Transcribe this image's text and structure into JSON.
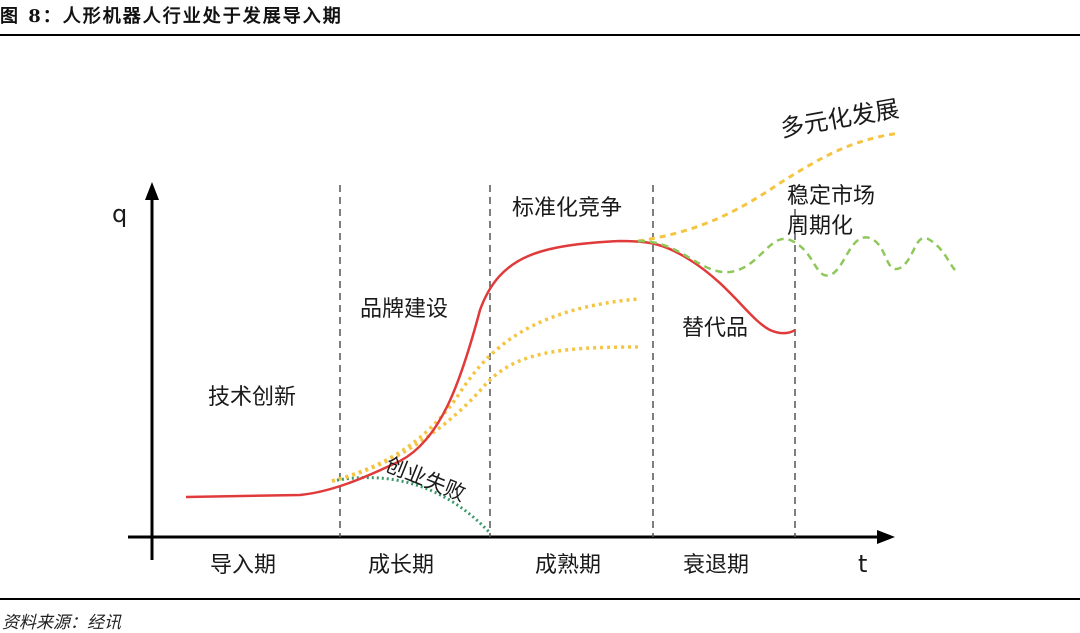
{
  "header": {
    "title": "图 8：人形机器人行业处于发展导入期"
  },
  "footer": {
    "source": "资料来源：经讯"
  },
  "diagram": {
    "axes": {
      "y": "q",
      "x": "t"
    },
    "phases": [
      "导入期",
      "成长期",
      "成熟期",
      "衰退期"
    ],
    "annotations": {
      "innovation": "技术创新",
      "brand": "品牌建设",
      "failure": "创业失败",
      "standard": "标准化竞争",
      "substitute": "替代品",
      "diversified": "多元化发展",
      "stable_line1": "稳定市场",
      "stable_line2": "周期化"
    },
    "colors": {
      "main_curve": "#e03a3a",
      "growth_curves": "#f5c542",
      "failure_curve": "#3a9a6a",
      "stable_curve": "#8fc85a",
      "diversified_curve": "#f5c542"
    }
  }
}
